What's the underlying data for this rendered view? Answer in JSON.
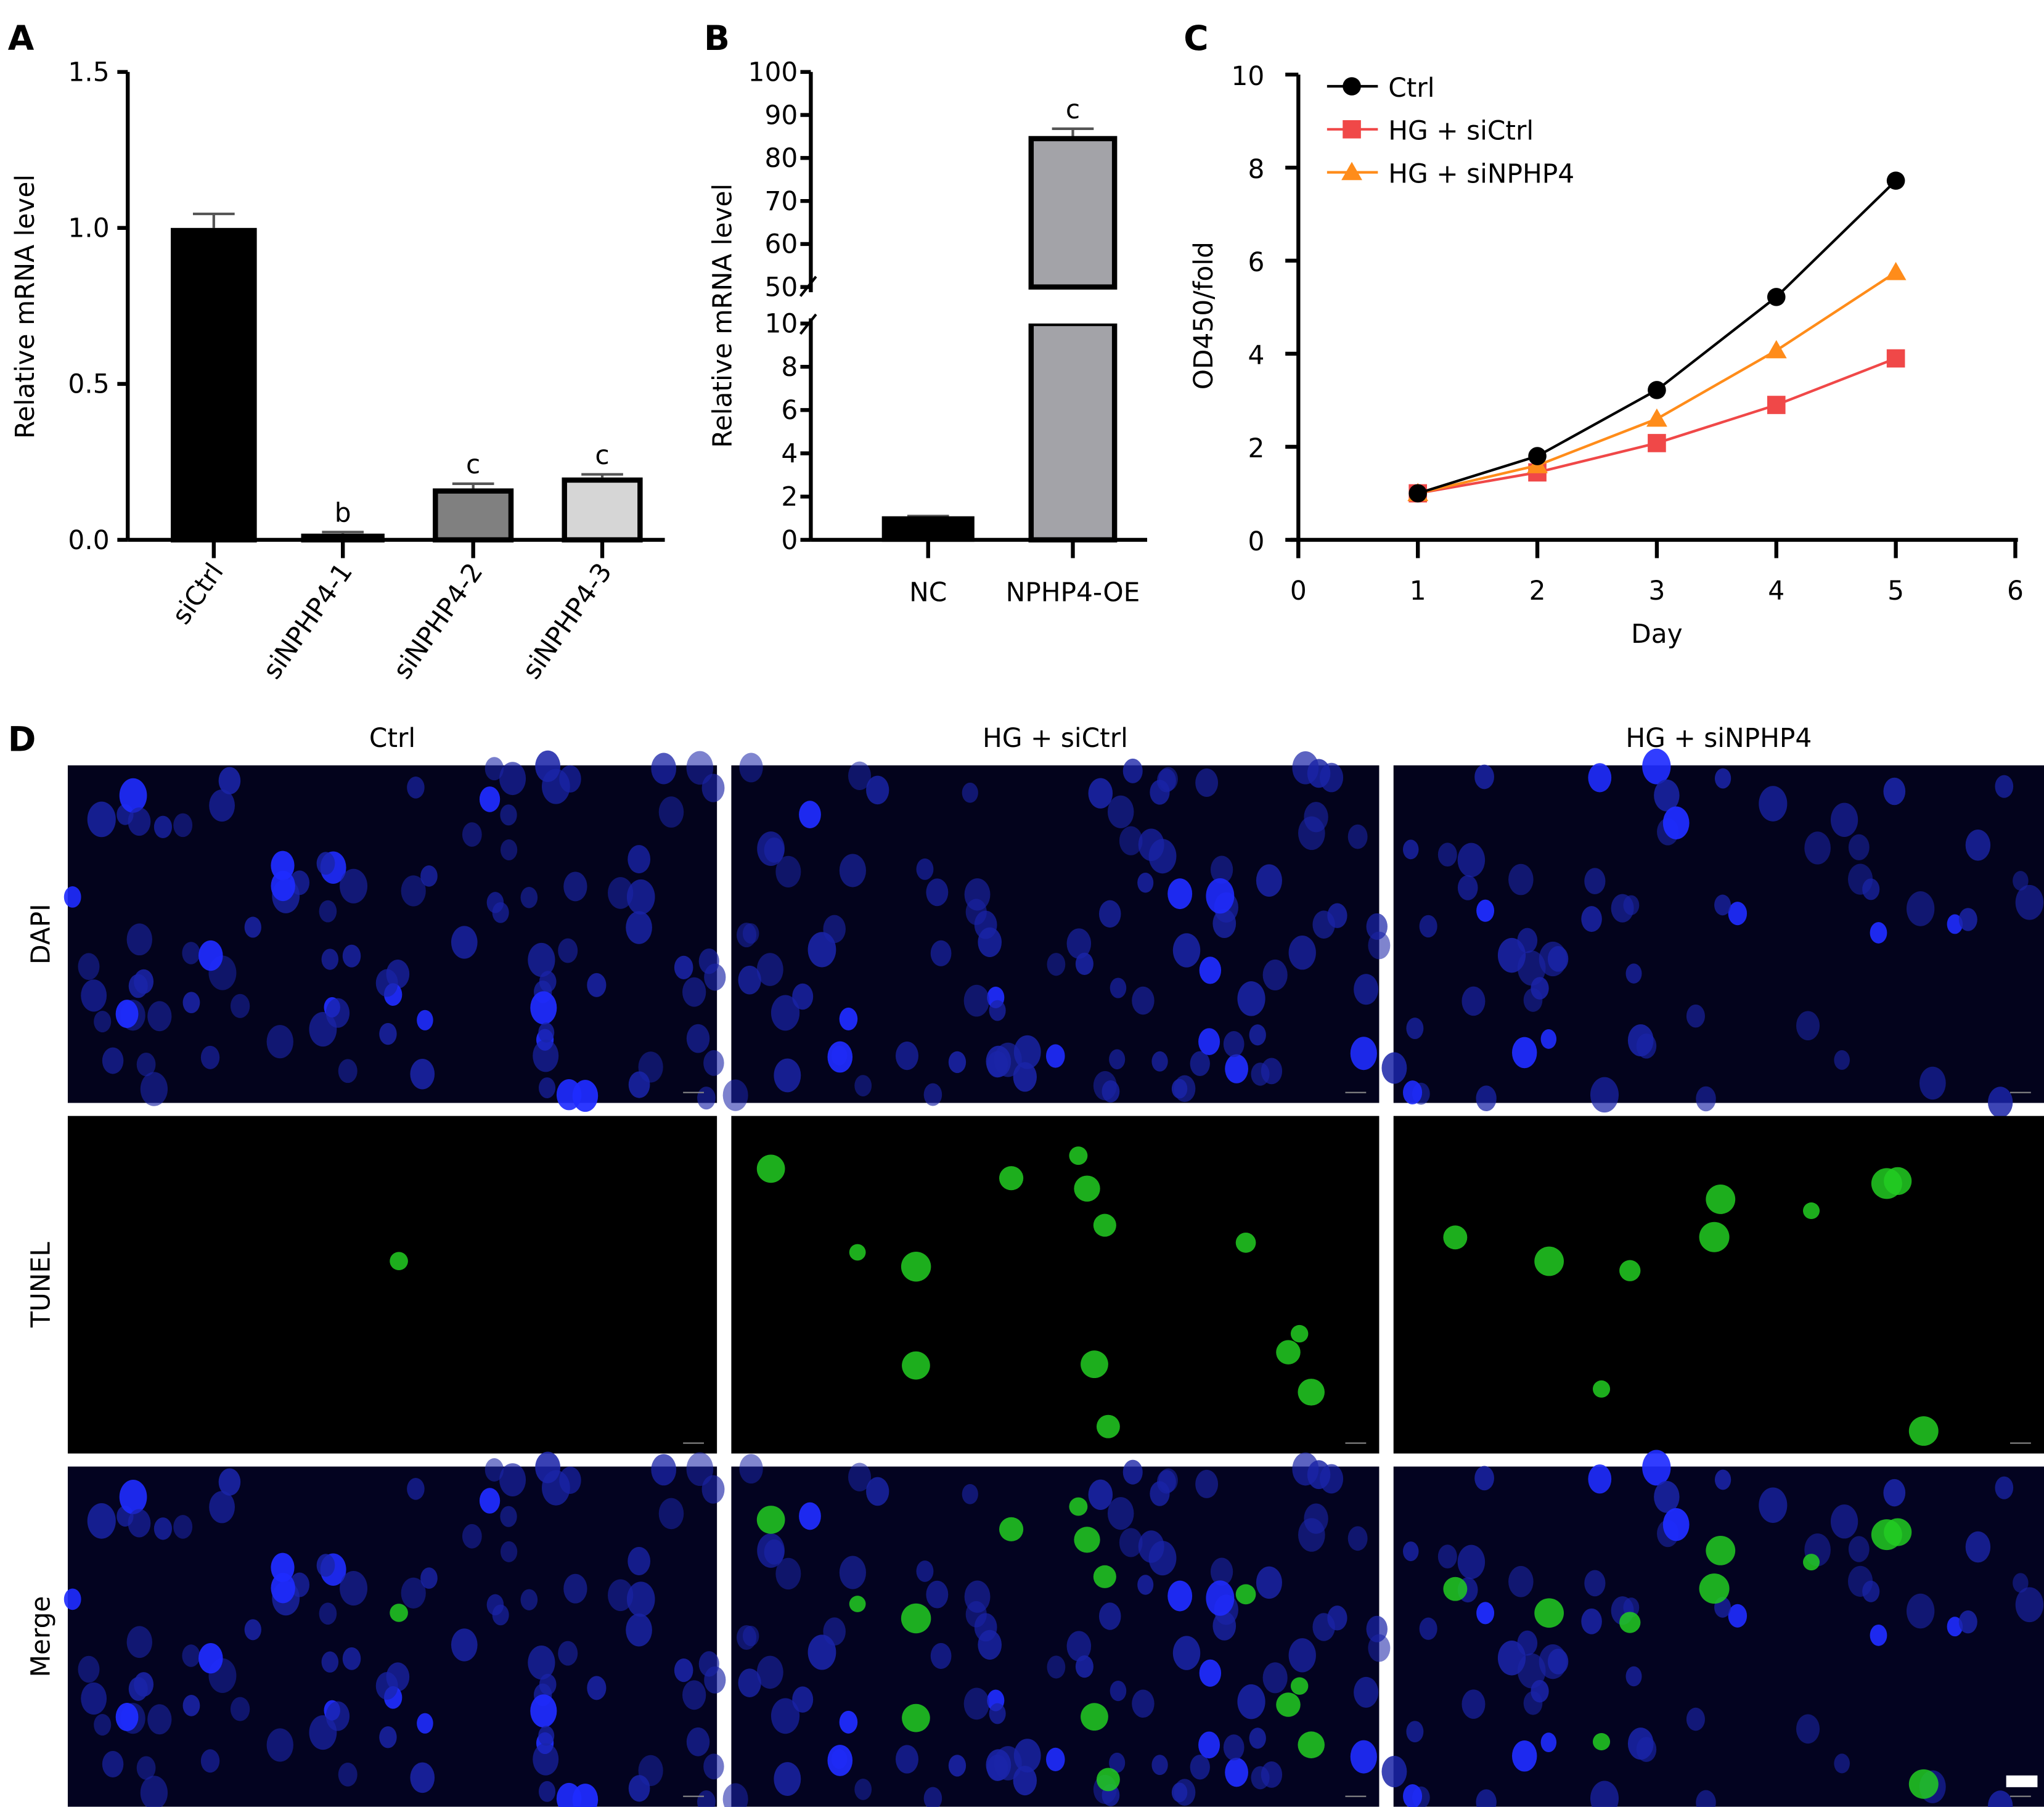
{
  "panels": {
    "a": "A",
    "b": "B",
    "c": "C",
    "d": "D"
  },
  "chart_data": [
    {
      "type": "bar",
      "panel": "A",
      "ylabel": "Relative mRNA level",
      "ylim": [
        0,
        1.5
      ],
      "yticks": [
        "0.0",
        "0.5",
        "1.0",
        "1.5"
      ],
      "categories": [
        "siCtrl",
        "siNPHP4-1",
        "siNPHP4-2",
        "siNPHP4-3"
      ],
      "values": [
        1.0,
        0.02,
        0.165,
        0.2
      ],
      "errors": [
        0.045,
        0.005,
        0.015,
        0.01
      ],
      "significance": [
        "",
        "b",
        "c",
        "c"
      ],
      "colors": [
        "#000000",
        "#000000",
        "#808080",
        "#d6d6d6"
      ]
    },
    {
      "type": "bar",
      "panel": "B",
      "ylabel": "Relative mRNA level",
      "axis_break": [
        10,
        50
      ],
      "yticks": [
        "0",
        "2",
        "4",
        "6",
        "8",
        "10",
        "50",
        "60",
        "70",
        "80",
        "90",
        "100"
      ],
      "categories": [
        "NC",
        "NPHP4-OE"
      ],
      "values": [
        1.0,
        84.5
      ],
      "errors": [
        0.1,
        2.3
      ],
      "significance": [
        "",
        "c"
      ],
      "colors": [
        "#000000",
        "#a3a3a8"
      ]
    },
    {
      "type": "line",
      "panel": "C",
      "xlabel": "Day",
      "ylabel": "OD450/fold",
      "xlim": [
        0,
        6
      ],
      "ylim": [
        0,
        10
      ],
      "xticks": [
        "0",
        "1",
        "2",
        "3",
        "4",
        "5",
        "6"
      ],
      "yticks": [
        "0",
        "2",
        "4",
        "6",
        "8",
        "10"
      ],
      "x": [
        1,
        2,
        3,
        4,
        5
      ],
      "legend": "top-left",
      "series": [
        {
          "name": "Ctrl",
          "values": [
            1.0,
            1.8,
            3.22,
            5.22,
            7.72
          ],
          "color": "#000000",
          "marker": "circle"
        },
        {
          "name": "HG + siCtrl",
          "values": [
            1.0,
            1.45,
            2.08,
            2.9,
            3.9
          ],
          "color": "#f04848",
          "marker": "square"
        },
        {
          "name": "HG + siNPHP4",
          "values": [
            1.0,
            1.6,
            2.6,
            4.07,
            5.75
          ],
          "color": "#ff8c1a",
          "marker": "triangle"
        }
      ]
    }
  ],
  "micrographs": {
    "columns": [
      "Ctrl",
      "HG + siCtrl",
      "HG + siNPHP4"
    ],
    "rows": [
      "DAPI",
      "TUNEL",
      "Merge"
    ],
    "tunel_positive_counts": [
      1,
      14,
      10
    ]
  }
}
